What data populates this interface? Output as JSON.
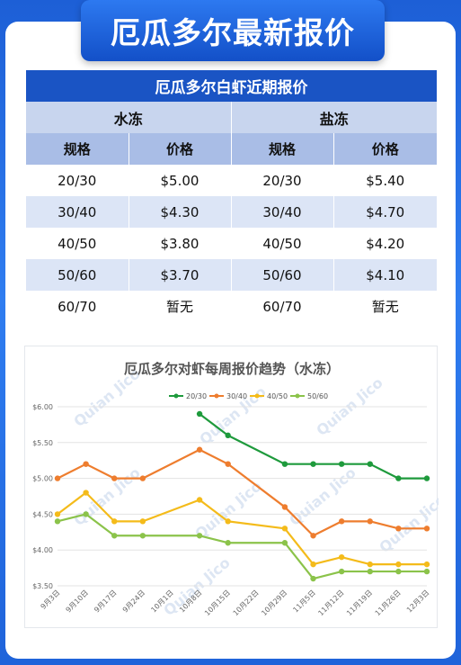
{
  "banner": {
    "title": "厄瓜多尔最新报价"
  },
  "table": {
    "title": "厄瓜多尔白虾近期报价",
    "groups": [
      "水冻",
      "盐冻"
    ],
    "headers": [
      "规格",
      "价格",
      "规格",
      "价格"
    ],
    "rows": [
      [
        "20/30",
        "$5.00",
        "20/30",
        "$5.40"
      ],
      [
        "30/40",
        "$4.30",
        "30/40",
        "$4.70"
      ],
      [
        "40/50",
        "$3.80",
        "40/50",
        "$4.20"
      ],
      [
        "50/60",
        "$3.70",
        "50/60",
        "$4.10"
      ],
      [
        "60/70",
        "暂无",
        "60/70",
        "暂无"
      ]
    ]
  },
  "watermark": "Quian Jico",
  "chart_data": {
    "type": "line",
    "title": "厄瓜多尔对虾每周报价趋势（水冻）",
    "xlabel": "",
    "ylabel": "",
    "categories": [
      "9月3日",
      "9月10日",
      "9月17日",
      "9月24日",
      "10月1日",
      "10月8日",
      "10月15日",
      "10月22日",
      "10月29日",
      "11月5日",
      "11月12日",
      "11月19日",
      "11月26日",
      "12月3日"
    ],
    "ylim": [
      3.5,
      6.0
    ],
    "yticks": [
      "$3.50",
      "$4.00",
      "$4.50",
      "$5.00",
      "$5.50",
      "$6.00"
    ],
    "legend_position": "top",
    "series": [
      {
        "name": "20/30",
        "color": "#1e9a3c",
        "values": [
          null,
          null,
          null,
          null,
          null,
          5.9,
          5.6,
          null,
          5.2,
          5.2,
          5.2,
          5.2,
          5.0,
          5.0
        ]
      },
      {
        "name": "30/40",
        "color": "#ee7d2e",
        "values": [
          5.0,
          5.2,
          5.0,
          5.0,
          null,
          5.4,
          5.2,
          null,
          4.6,
          4.2,
          4.4,
          4.4,
          4.3,
          4.3
        ]
      },
      {
        "name": "40/50",
        "color": "#f4bb1a",
        "values": [
          4.5,
          4.8,
          4.4,
          4.4,
          null,
          4.7,
          4.4,
          null,
          4.3,
          3.8,
          3.9,
          3.8,
          3.8,
          3.8
        ]
      },
      {
        "name": "50/60",
        "color": "#8bc34a",
        "values": [
          4.4,
          4.5,
          4.2,
          4.2,
          null,
          4.2,
          4.1,
          null,
          4.1,
          3.6,
          3.7,
          3.7,
          3.7,
          3.7
        ]
      }
    ]
  }
}
